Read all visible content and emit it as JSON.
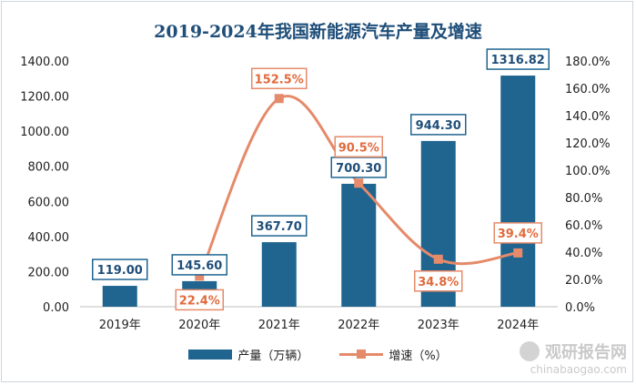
{
  "chart_data": {
    "type": "bar+line",
    "title": "2019-2024年我国新能源汽车产量及增速",
    "categories": [
      "2019年",
      "2020年",
      "2021年",
      "2022年",
      "2023年",
      "2024年"
    ],
    "series": [
      {
        "name": "产量（万辆）",
        "type": "bar",
        "axis": "left",
        "color": "#1f6590",
        "values": [
          119.0,
          145.6,
          367.7,
          700.3,
          944.3,
          1316.82
        ],
        "labels": [
          "119.00",
          "145.60",
          "367.70",
          "700.30",
          "944.30",
          "1316.82"
        ]
      },
      {
        "name": "增速（%）",
        "type": "line",
        "axis": "right",
        "color": "#e58a6a",
        "values": [
          null,
          22.4,
          152.5,
          90.5,
          34.8,
          39.4
        ],
        "labels": [
          "",
          "22.4%",
          "152.5%",
          "90.5%",
          "34.8%",
          "39.4%"
        ]
      }
    ],
    "y_left": {
      "min": 0,
      "max": 1400,
      "step": 200,
      "tick_labels": [
        "0.00",
        "200.00",
        "400.00",
        "600.00",
        "800.00",
        "1000.00",
        "1200.00",
        "1400.00"
      ]
    },
    "y_right": {
      "min": 0,
      "max": 180,
      "step": 20,
      "tick_labels": [
        "0.0%",
        "20.0%",
        "40.0%",
        "60.0%",
        "80.0%",
        "100.0%",
        "120.0%",
        "140.0%",
        "160.0%",
        "180.0%"
      ]
    },
    "grid": false,
    "legend_position": "bottom"
  },
  "watermark": {
    "brand": "观研报告网",
    "url": "chinabaogao.com"
  }
}
